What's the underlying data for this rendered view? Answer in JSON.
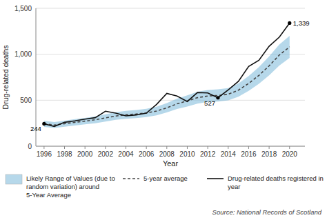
{
  "chart_data": {
    "type": "line",
    "x": [
      1996,
      1997,
      1998,
      1999,
      2000,
      2001,
      2002,
      2003,
      2004,
      2005,
      2006,
      2007,
      2008,
      2009,
      2010,
      2011,
      2012,
      2013,
      2014,
      2015,
      2016,
      2017,
      2018,
      2019,
      2020
    ],
    "series": [
      {
        "name": "Likely Range of Values (due to random variation) around 5-Year Average",
        "type": "band",
        "color": "#7ab8d9",
        "lower": [
          210,
          198,
          212,
          225,
          238,
          250,
          269,
          286,
          299,
          306,
          316,
          335,
          367,
          405,
          432,
          464,
          481,
          486,
          498,
          538,
          602,
          679,
          771,
          877,
          960
        ],
        "upper": [
          278,
          262,
          278,
          295,
          308,
          324,
          347,
          370,
          385,
          394,
          406,
          429,
          469,
          517,
          554,
          592,
          611,
          618,
          632,
          682,
          764,
          861,
          977,
          1107,
          1200
        ]
      },
      {
        "name": "5-year average",
        "type": "line",
        "color": "#444444",
        "line_style": "dashed",
        "values": [
          244,
          230,
          245,
          260,
          273,
          287,
          308,
          328,
          342,
          350,
          361,
          382,
          418,
          461,
          493,
          528,
          546,
          552,
          565,
          610,
          683,
          770,
          874,
          992,
          1080
        ]
      },
      {
        "name": "Drug-related deaths registered in year",
        "type": "line",
        "color": "#111111",
        "line_style": "solid",
        "values": [
          244,
          215,
          260,
          275,
          295,
          310,
          380,
          360,
          330,
          340,
          360,
          455,
          574,
          545,
          486,
          584,
          579,
          527,
          613,
          706,
          867,
          934,
          1087,
          1187,
          1339
        ]
      }
    ],
    "annotations": [
      {
        "x": 1996,
        "y": 244,
        "text": "244"
      },
      {
        "x": 2013,
        "y": 527,
        "text": "527"
      },
      {
        "x": 2020,
        "y": 1339,
        "text": "1,339"
      }
    ],
    "xlim": [
      1995.2,
      2021.5
    ],
    "ylim": [
      0,
      1500
    ],
    "xticks": [
      1996,
      1998,
      2000,
      2002,
      2004,
      2006,
      2008,
      2010,
      2012,
      2014,
      2016,
      2018,
      2020
    ],
    "yticks": [
      0,
      500,
      {
        "value": 1000,
        "label": "1,000"
      },
      {
        "value": 1500,
        "label": "1,500"
      }
    ],
    "xlabel": "Year",
    "ylabel": "Drug-related deaths",
    "source": "Source: National Records of Scotland",
    "grid": true,
    "legend": "bottom"
  }
}
